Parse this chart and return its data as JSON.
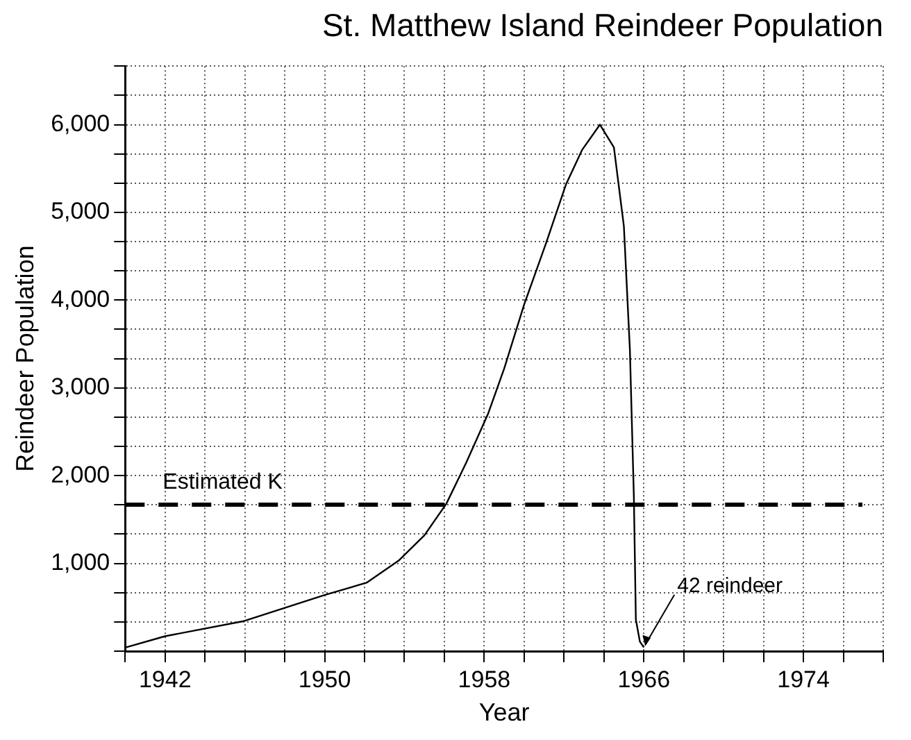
{
  "chart_data": {
    "type": "line",
    "title": "St. Matthew Island Reindeer Population",
    "xlabel": "Year",
    "ylabel": "Reindeer Population",
    "x": [
      1940,
      1942,
      1945.9,
      1950,
      1952.1,
      1953.7,
      1955,
      1956.1,
      1957.1,
      1958.2,
      1959,
      1960,
      1961.1,
      1962.1,
      1962.9,
      1963.8,
      1964.5,
      1965,
      1965.3,
      1965.5,
      1965.6,
      1965.8,
      1966
    ],
    "series": [
      {
        "color": "#000000",
        "values": [
          40,
          170,
          340,
          640,
          780,
          1030,
          1320,
          1680,
          2150,
          2710,
          3220,
          3950,
          4650,
          5320,
          5710,
          6000,
          5740,
          4840,
          3440,
          1760,
          360,
          110,
          42
        ]
      }
    ],
    "xlim": [
      1940,
      1978
    ],
    "xticks": [
      {
        "value": 1940,
        "label": null
      },
      {
        "value": 1942,
        "label": "1942"
      },
      {
        "value": 1944,
        "label": null
      },
      {
        "value": 1946,
        "label": null
      },
      {
        "value": 1948,
        "label": null
      },
      {
        "value": 1950,
        "label": "1950"
      },
      {
        "value": 1952,
        "label": null
      },
      {
        "value": 1954,
        "label": null
      },
      {
        "value": 1956,
        "label": null
      },
      {
        "value": 1958,
        "label": "1958"
      },
      {
        "value": 1960,
        "label": null
      },
      {
        "value": 1962,
        "label": null
      },
      {
        "value": 1964,
        "label": null
      },
      {
        "value": 1966,
        "label": "1966"
      },
      {
        "value": 1968,
        "label": null
      },
      {
        "value": 1970,
        "label": null
      },
      {
        "value": 1972,
        "label": null
      },
      {
        "value": 1974,
        "label": "1974"
      },
      {
        "value": 1976,
        "label": null
      },
      {
        "value": 1978,
        "label": null
      }
    ],
    "ylim": [
      0,
      6667
    ],
    "yticks": [
      {
        "value": 0,
        "label": null
      },
      {
        "value": 333.3,
        "label": null
      },
      {
        "value": 666.7,
        "label": null
      },
      {
        "value": 1000,
        "label": "1,000"
      },
      {
        "value": 1333.3,
        "label": null
      },
      {
        "value": 1666.7,
        "label": null
      },
      {
        "value": 2000,
        "label": "2,000"
      },
      {
        "value": 2333.3,
        "label": null
      },
      {
        "value": 2666.7,
        "label": null
      },
      {
        "value": 3000,
        "label": "3,000"
      },
      {
        "value": 3333.3,
        "label": null
      },
      {
        "value": 3666.7,
        "label": null
      },
      {
        "value": 4000,
        "label": "4,000"
      },
      {
        "value": 4333.3,
        "label": null
      },
      {
        "value": 4666.7,
        "label": null
      },
      {
        "value": 5000,
        "label": "5,000"
      },
      {
        "value": 5333.3,
        "label": null
      },
      {
        "value": 5666.7,
        "label": null
      },
      {
        "value": 6000,
        "label": "6,000"
      },
      {
        "value": 6333.3,
        "label": null
      },
      {
        "value": 6666.7,
        "label": null
      }
    ],
    "ref_lines": [
      {
        "axis": "y",
        "value": 1670,
        "label": "Estimated K",
        "color": "#000000",
        "line_style": "dashed"
      }
    ],
    "annotations": [
      {
        "text": "42 reindeer",
        "x": 1966,
        "y": 42
      }
    ],
    "grid": true,
    "legend": false,
    "marker": "none",
    "line_style": "solid"
  }
}
